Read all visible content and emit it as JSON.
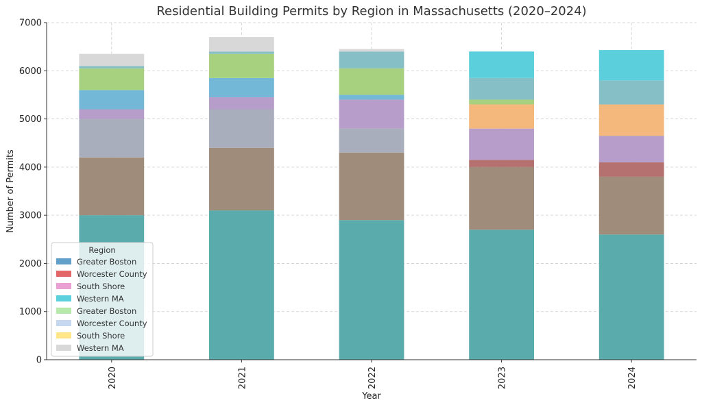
{
  "chart_data": {
    "type": "bar",
    "stacked": true,
    "title": "Residential Building Permits by Region in Massachusetts (2020–2024)",
    "xlabel": "Year",
    "ylabel": "Number of Permits",
    "categories": [
      "2020",
      "2021",
      "2022",
      "2023",
      "2024"
    ],
    "ylim": [
      0,
      7000
    ],
    "yticks": [
      0,
      1000,
      2000,
      3000,
      4000,
      5000,
      6000,
      7000
    ],
    "grid": true,
    "legend": {
      "title": "Region",
      "placement": "lower-left",
      "entries": [
        {
          "label": "Greater Boston",
          "color": "#1f77b4"
        },
        {
          "label": "Worcester County",
          "color": "#d62728"
        },
        {
          "label": "South Shore",
          "color": "#e377c2"
        },
        {
          "label": "Western MA",
          "color": "#17becf"
        },
        {
          "label": "Greater Boston",
          "color": "#98df8a"
        },
        {
          "label": "Worcester County",
          "color": "#aec7e8"
        },
        {
          "label": "South Shore",
          "color": "#ffdd57"
        },
        {
          "label": "Western MA",
          "color": "#c7c7c7"
        }
      ]
    },
    "series": [
      {
        "color": "#5aabab",
        "values": [
          3000,
          3100,
          2900,
          2700,
          2600
        ]
      },
      {
        "color": "#a08c7a",
        "values": [
          1200,
          1300,
          1400,
          1300,
          1200
        ]
      },
      {
        "color": "#b4716f",
        "values": [
          0,
          0,
          0,
          150,
          300
        ]
      },
      {
        "color": "#a8aebb",
        "values": [
          800,
          800,
          500,
          0,
          0
        ]
      },
      {
        "color": "#b79dc9",
        "values": [
          200,
          250,
          600,
          650,
          550
        ]
      },
      {
        "color": "#f4b77c",
        "values": [
          0,
          0,
          0,
          500,
          650
        ]
      },
      {
        "color": "#74b8d7",
        "values": [
          400,
          400,
          100,
          0,
          0
        ]
      },
      {
        "color": "#a8d17f",
        "values": [
          450,
          500,
          550,
          100,
          0
        ]
      },
      {
        "color": "#86bfc6",
        "values": [
          50,
          50,
          350,
          450,
          500
        ]
      },
      {
        "color": "#5ccfdc",
        "values": [
          0,
          0,
          0,
          550,
          630
        ]
      },
      {
        "color": "#d8d8d8",
        "values": [
          250,
          300,
          50,
          0,
          0
        ]
      }
    ]
  }
}
